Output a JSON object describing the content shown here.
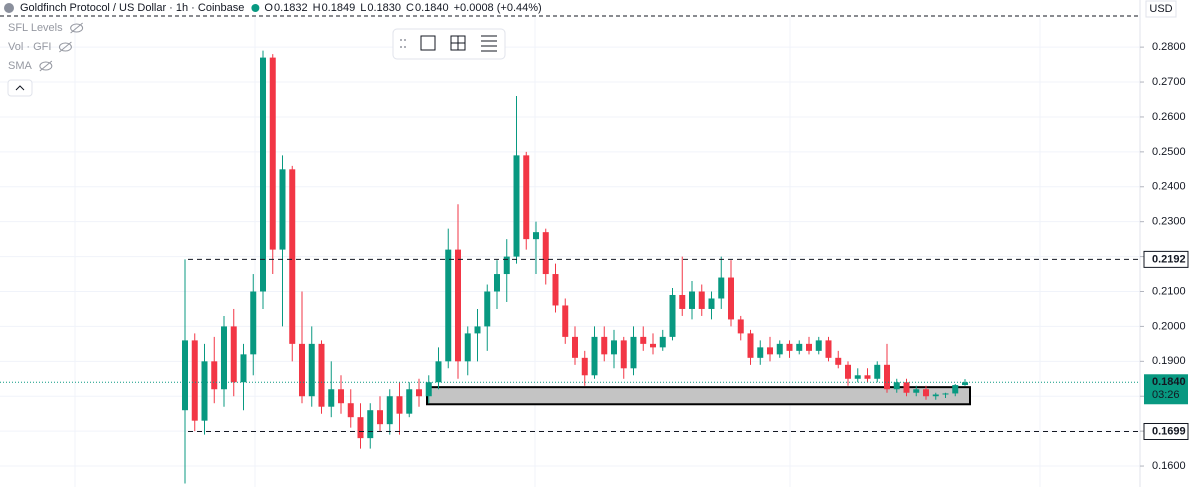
{
  "header": {
    "title": "Goldfinch Protocol / US Dollar · 1h · Coinbase",
    "ohlc": [
      {
        "label": "O",
        "value": "0.1832"
      },
      {
        "label": "H",
        "value": "0.1849"
      },
      {
        "label": "L",
        "value": "0.1830"
      },
      {
        "label": "C",
        "value": "0.1840"
      }
    ],
    "change": "+0.0008 (+0.44%)",
    "indicators": [
      "SFL Levels",
      "Vol · GFI",
      "SMA"
    ],
    "currency": "USD"
  },
  "chart_data": {
    "type": "candlestick",
    "up_color": "#089981",
    "down_color": "#f23645",
    "open": [
      0.176,
      0.196,
      0.173,
      0.19,
      0.182,
      0.2,
      0.184,
      0.192,
      0.21,
      0.277,
      0.222,
      0.245,
      0.195,
      0.18,
      0.195,
      0.177,
      0.182,
      0.178,
      0.174,
      0.168,
      0.176,
      0.172,
      0.18,
      0.175,
      0.182,
      0.18,
      0.184,
      0.19,
      0.222,
      0.19,
      0.198,
      0.2,
      0.21,
      0.215,
      0.22,
      0.249,
      0.225,
      0.227,
      0.215,
      0.206,
      0.197,
      0.191,
      0.186,
      0.197,
      0.192,
      0.196,
      0.188,
      0.197,
      0.195,
      0.194,
      0.197,
      0.209,
      0.205,
      0.21,
      0.205,
      0.208,
      0.214,
      0.202,
      0.198,
      0.191,
      0.194,
      0.192,
      0.195,
      0.193,
      0.195,
      0.193,
      0.196,
      0.191,
      0.189,
      0.185,
      0.186,
      0.185,
      0.189,
      0.182,
      0.184,
      0.181,
      0.182,
      0.18,
      0.1805,
      0.1808,
      0.1832
    ],
    "high": [
      0.2192,
      0.198,
      0.195,
      0.197,
      0.203,
      0.205,
      0.195,
      0.215,
      0.279,
      0.278,
      0.249,
      0.246,
      0.21,
      0.2,
      0.196,
      0.19,
      0.186,
      0.182,
      0.178,
      0.178,
      0.18,
      0.182,
      0.184,
      0.184,
      0.185,
      0.186,
      0.194,
      0.228,
      0.235,
      0.2,
      0.205,
      0.212,
      0.219,
      0.225,
      0.266,
      0.25,
      0.23,
      0.228,
      0.218,
      0.208,
      0.2,
      0.193,
      0.2,
      0.2,
      0.199,
      0.197,
      0.2,
      0.2,
      0.198,
      0.199,
      0.211,
      0.22,
      0.213,
      0.212,
      0.21,
      0.22,
      0.219,
      0.203,
      0.199,
      0.196,
      0.197,
      0.196,
      0.196,
      0.196,
      0.197,
      0.197,
      0.197,
      0.193,
      0.19,
      0.188,
      0.188,
      0.19,
      0.195,
      0.185,
      0.185,
      0.183,
      0.183,
      0.181,
      0.181,
      0.1835,
      0.1849
    ],
    "low": [
      0.155,
      0.17,
      0.169,
      0.178,
      0.177,
      0.18,
      0.176,
      0.186,
      0.205,
      0.215,
      0.2,
      0.19,
      0.178,
      0.177,
      0.175,
      0.174,
      0.175,
      0.171,
      0.165,
      0.165,
      0.17,
      0.169,
      0.169,
      0.174,
      0.177,
      0.178,
      0.182,
      0.188,
      0.185,
      0.186,
      0.19,
      0.193,
      0.205,
      0.207,
      0.218,
      0.222,
      0.215,
      0.212,
      0.204,
      0.195,
      0.189,
      0.183,
      0.185,
      0.19,
      0.188,
      0.185,
      0.186,
      0.193,
      0.192,
      0.193,
      0.196,
      0.203,
      0.202,
      0.203,
      0.202,
      0.205,
      0.2,
      0.196,
      0.189,
      0.189,
      0.19,
      0.191,
      0.191,
      0.192,
      0.192,
      0.192,
      0.19,
      0.188,
      0.183,
      0.184,
      0.184,
      0.184,
      0.181,
      0.181,
      0.18,
      0.18,
      0.179,
      0.179,
      0.1795,
      0.18,
      0.183
    ],
    "close": [
      0.196,
      0.173,
      0.19,
      0.182,
      0.2,
      0.184,
      0.192,
      0.21,
      0.277,
      0.222,
      0.245,
      0.195,
      0.18,
      0.195,
      0.177,
      0.182,
      0.178,
      0.174,
      0.168,
      0.176,
      0.172,
      0.18,
      0.175,
      0.182,
      0.18,
      0.184,
      0.19,
      0.222,
      0.19,
      0.198,
      0.2,
      0.21,
      0.215,
      0.22,
      0.249,
      0.225,
      0.227,
      0.215,
      0.206,
      0.197,
      0.191,
      0.186,
      0.197,
      0.192,
      0.196,
      0.188,
      0.197,
      0.195,
      0.194,
      0.197,
      0.209,
      0.205,
      0.21,
      0.205,
      0.208,
      0.214,
      0.202,
      0.198,
      0.191,
      0.194,
      0.192,
      0.195,
      0.193,
      0.195,
      0.193,
      0.196,
      0.191,
      0.189,
      0.185,
      0.186,
      0.185,
      0.189,
      0.182,
      0.184,
      0.181,
      0.182,
      0.18,
      0.1805,
      0.1808,
      0.1832,
      0.184
    ],
    "ylim": [
      0.154,
      0.2935
    ],
    "yticks": [
      {
        "value": 0.16,
        "label": "0.1600"
      },
      {
        "value": 0.17,
        "label": "0.1700"
      },
      {
        "value": 0.18,
        "label": "0.1800"
      },
      {
        "value": 0.19,
        "label": "0.1900"
      },
      {
        "value": 0.2,
        "label": "0.2000"
      },
      {
        "value": 0.21,
        "label": "0.2100"
      },
      {
        "value": 0.22,
        "label": "0.2200"
      },
      {
        "value": 0.23,
        "label": "0.2300"
      },
      {
        "value": 0.24,
        "label": "0.2400"
      },
      {
        "value": 0.25,
        "label": "0.2500"
      },
      {
        "value": 0.26,
        "label": "0.2600"
      },
      {
        "value": 0.27,
        "label": "0.2700"
      },
      {
        "value": 0.28,
        "label": "0.2800"
      }
    ],
    "grid": true,
    "level_lines": [
      {
        "value": 0.2192,
        "label": "0.2192"
      },
      {
        "value": 0.1699,
        "label": "0.1699"
      }
    ],
    "last_price": {
      "value": 0.184,
      "label": "0.1840",
      "countdown": "03:26"
    },
    "zone": {
      "top": 0.1826,
      "bottom": 0.1777
    }
  }
}
